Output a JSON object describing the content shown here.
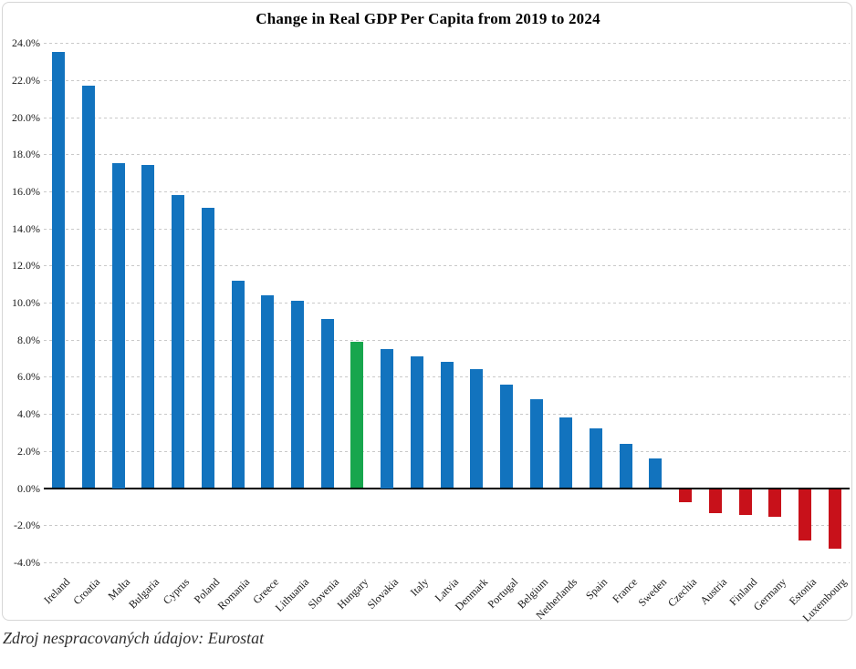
{
  "page": {
    "source_note": "Zdroj nespracovaných údajov: Eurostat"
  },
  "chart_data": {
    "type": "bar",
    "title": "Change in Real GDP Per Capita from 2019 to 2024",
    "categories": [
      "Ireland",
      "Croatia",
      "Malta",
      "Bulgaria",
      "Cyprus",
      "Poland",
      "Romania",
      "Greece",
      "Lithuania",
      "Slovenia",
      "Hungary",
      "Slovakia",
      "Italy",
      "Latvia",
      "Denmark",
      "Portugal",
      "Belgium",
      "Netherlands",
      "Spain",
      "France",
      "Sweden",
      "Czechia",
      "Austria",
      "Finland",
      "Germany",
      "Estonia",
      "Luxembourg"
    ],
    "values": [
      23.5,
      21.7,
      17.5,
      17.4,
      15.8,
      15.1,
      11.2,
      10.4,
      10.1,
      9.1,
      7.9,
      7.5,
      7.1,
      6.8,
      6.4,
      5.6,
      4.8,
      3.8,
      3.2,
      2.4,
      1.6,
      -0.7,
      -1.3,
      -1.4,
      -1.5,
      -2.8,
      -3.2
    ],
    "unit": "%",
    "xlabel": "",
    "ylabel": "",
    "ylim": [
      -4,
      24
    ],
    "ytick_step": 2,
    "ytick_labels": [
      "24.0%",
      "22.0%",
      "20.0%",
      "18.0%",
      "16.0%",
      "14.0%",
      "12.0%",
      "10.0%",
      "8.0%",
      "6.0%",
      "4.0%",
      "2.0%",
      "0.0%",
      "-2.0%",
      "-4.0%"
    ],
    "grid": "horizontal-dashed",
    "legend": "none",
    "highlight_category": "Hungary",
    "colors": {
      "positive": "#1273BE",
      "negative": "#C8111A",
      "highlight": "#17A64D",
      "gridline": "#c9c9c9",
      "axis": "#000000",
      "frame_border": "#d6d6d6"
    }
  }
}
